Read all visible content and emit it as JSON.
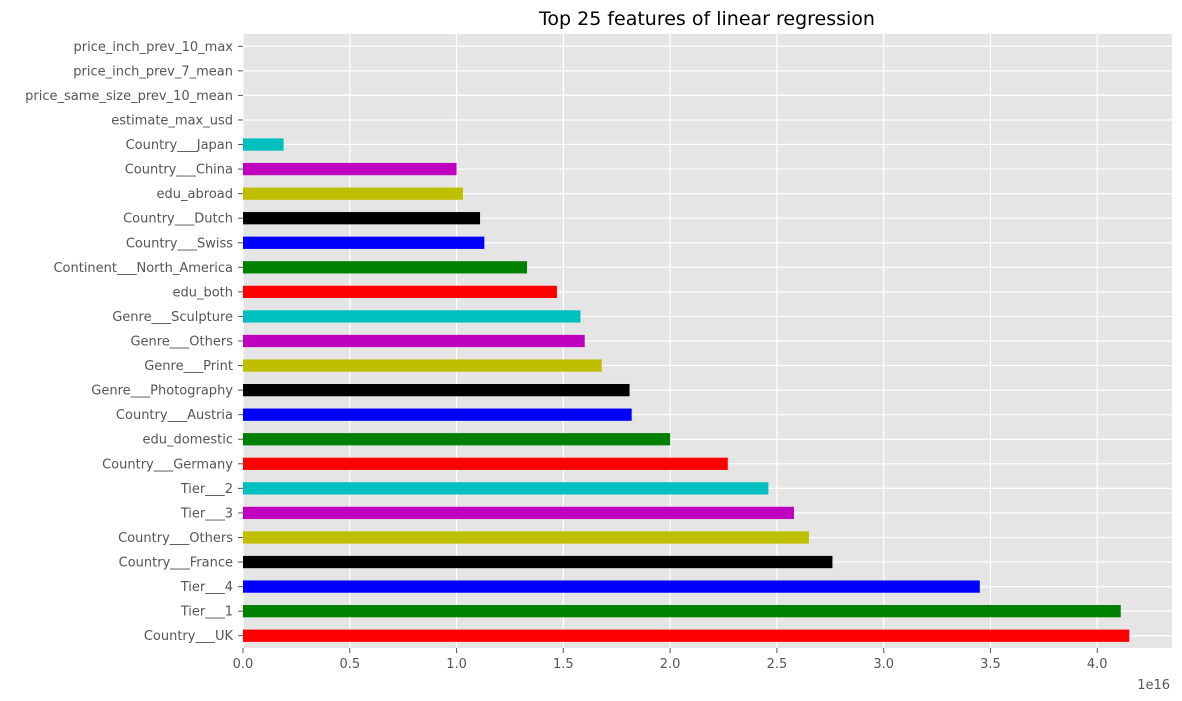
{
  "chart_data": {
    "type": "bar",
    "orientation": "horizontal",
    "title": "Top 25 features of  linear regression",
    "xlabel": "",
    "ylabel": "",
    "x_scale_label": "1e16",
    "xlim": [
      0,
      4.35
    ],
    "xticks": [
      "0.0",
      "0.5",
      "1.0",
      "1.5",
      "2.0",
      "2.5",
      "3.0",
      "3.5",
      "4.0"
    ],
    "grid": true,
    "background": "#e5e5e5",
    "colors": [
      "#ff0000",
      "#008000",
      "#0000ff",
      "#000000",
      "#bfbf00",
      "#bf00bf",
      "#00bfbf"
    ],
    "categories": [
      "Country___UK",
      "Tier___1",
      "Tier___4",
      "Country___France",
      "Country___Others",
      "Tier___3",
      "Tier___2",
      "Country___Germany",
      "edu_domestic",
      "Country___Austria",
      "Genre___Photography",
      "Genre___Print",
      "Genre___Others",
      "Genre___Sculpture",
      "edu_both",
      "Continent___North_America",
      "Country___Swiss",
      "Country___Dutch",
      "edu_abroad",
      "Country___China",
      "Country___Japan",
      "estimate_max_usd",
      "price_same_size_prev_10_mean",
      "price_inch_prev_7_mean",
      "price_inch_prev_10_max"
    ],
    "values": [
      4.15,
      4.11,
      3.45,
      2.76,
      2.65,
      2.58,
      2.46,
      2.27,
      2.0,
      1.82,
      1.81,
      1.68,
      1.6,
      1.58,
      1.47,
      1.33,
      1.13,
      1.11,
      1.03,
      1.0,
      0.19,
      0.0,
      0.0,
      0.0,
      0.0
    ]
  }
}
